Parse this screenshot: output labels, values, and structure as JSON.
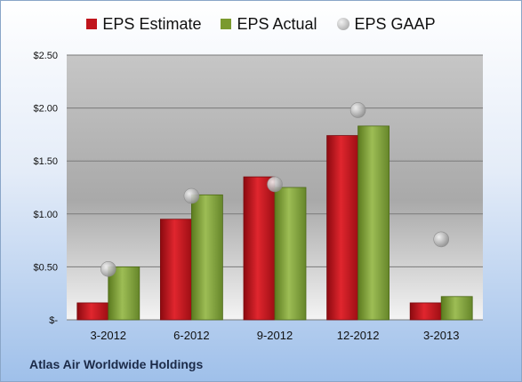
{
  "chart_data": {
    "type": "bar",
    "categories": [
      "3-2012",
      "6-2012",
      "9-2012",
      "12-2012",
      "3-2013"
    ],
    "series": [
      {
        "name": "EPS Estimate",
        "kind": "bar",
        "color": "#c0141c",
        "values": [
          0.16,
          0.95,
          1.35,
          1.74,
          0.16
        ]
      },
      {
        "name": "EPS Actual",
        "kind": "bar",
        "color": "#7a9a2e",
        "values": [
          0.5,
          1.18,
          1.25,
          1.83,
          0.22
        ]
      },
      {
        "name": "EPS GAAP",
        "kind": "marker",
        "color": "#a8a8a8",
        "values": [
          0.48,
          1.17,
          1.28,
          1.98,
          0.76
        ]
      }
    ],
    "ylim": [
      0,
      2.5
    ],
    "yticks": [
      0,
      0.5,
      1.0,
      1.5,
      2.0,
      2.5
    ],
    "ytick_labels": [
      "$-",
      "$0.50",
      "$1.00",
      "$1.50",
      "$2.00",
      "$2.50"
    ],
    "grid": true,
    "legend_position": "top",
    "company": "Atlas Air Worldwide Holdings"
  }
}
